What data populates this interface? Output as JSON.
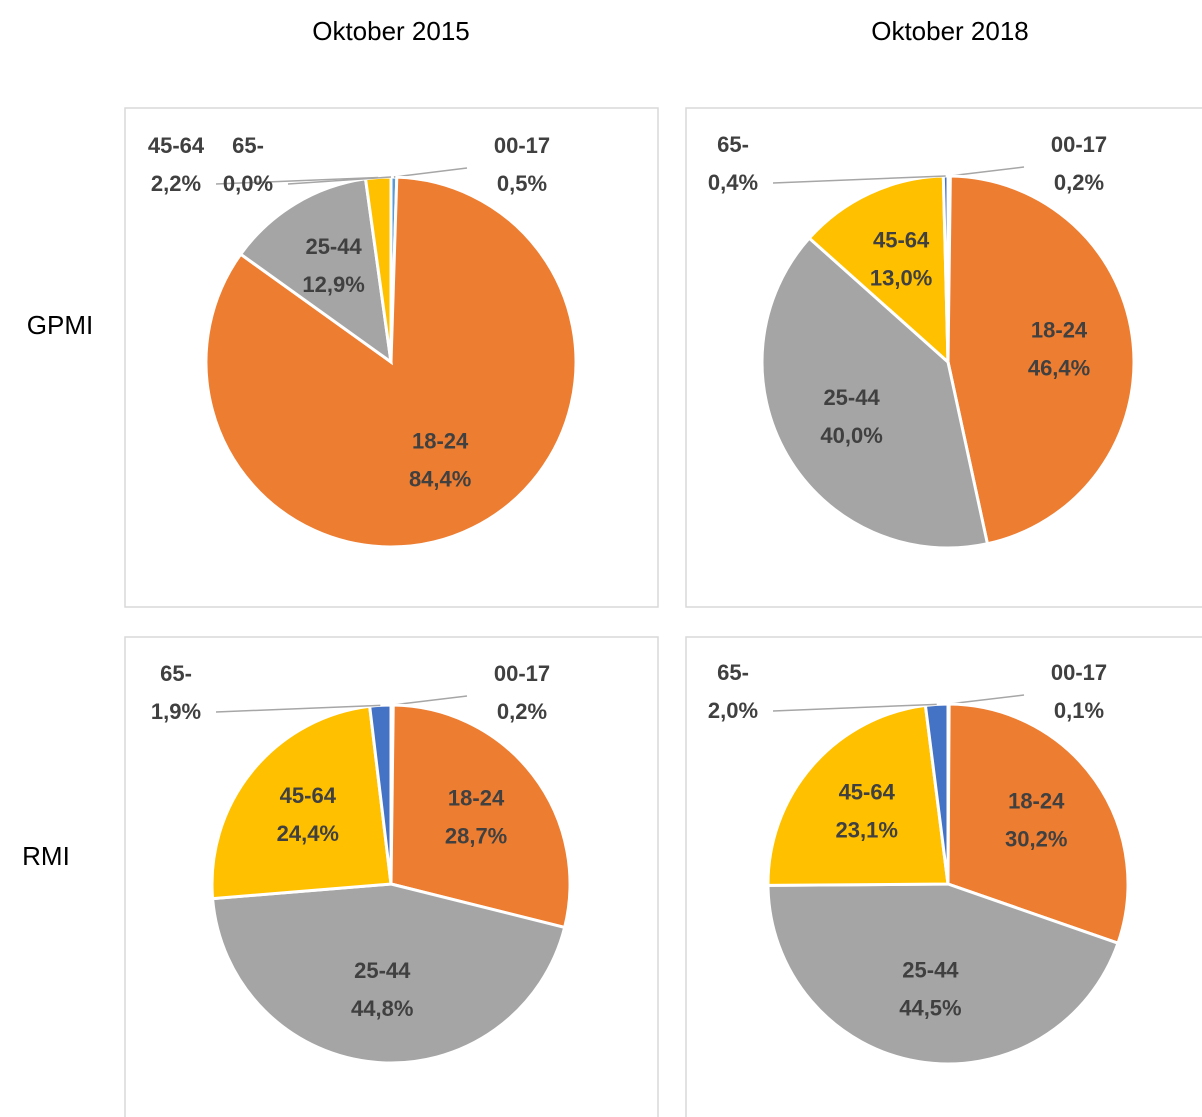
{
  "columns": [
    "Oktober 2015",
    "Oktober 2018"
  ],
  "rows": [
    "GPMI",
    "RMI"
  ],
  "chart_data": [
    {
      "type": "pie",
      "categories": [
        "00-17",
        "18-24",
        "25-44",
        "45-64",
        "65-"
      ],
      "colors": [
        "#5b9bd5",
        "#ed7d31",
        "#a5a5a5",
        "#ffc000",
        "#4472c4"
      ],
      "values": [
        0.5,
        84.4,
        12.9,
        2.2,
        0.0
      ],
      "value_labels": [
        "0,5%",
        "84,4%",
        "12,9%",
        "2,2%",
        "0,0%"
      ]
    },
    {
      "type": "pie",
      "categories": [
        "00-17",
        "18-24",
        "25-44",
        "45-64",
        "65-"
      ],
      "colors": [
        "#5b9bd5",
        "#ed7d31",
        "#a5a5a5",
        "#ffc000",
        "#4472c4"
      ],
      "values": [
        0.2,
        46.4,
        40.0,
        13.0,
        0.4
      ],
      "value_labels": [
        "0,2%",
        "46,4%",
        "40,0%",
        "13,0%",
        "0,4%"
      ]
    },
    {
      "type": "pie",
      "categories": [
        "00-17",
        "18-24",
        "25-44",
        "45-64",
        "65-"
      ],
      "colors": [
        "#5b9bd5",
        "#ed7d31",
        "#a5a5a5",
        "#ffc000",
        "#4472c4"
      ],
      "values": [
        0.2,
        28.7,
        44.8,
        24.4,
        1.9
      ],
      "value_labels": [
        "0,2%",
        "28,7%",
        "44,8%",
        "24,4%",
        "1,9%"
      ]
    },
    {
      "type": "pie",
      "categories": [
        "00-17",
        "18-24",
        "25-44",
        "45-64",
        "65-"
      ],
      "colors": [
        "#5b9bd5",
        "#ed7d31",
        "#a5a5a5",
        "#ffc000",
        "#4472c4"
      ],
      "values": [
        0.1,
        30.2,
        44.5,
        23.1,
        2.0
      ],
      "value_labels": [
        "0,1%",
        "30,2%",
        "44,5%",
        "23,1%",
        "2,0%"
      ]
    }
  ]
}
